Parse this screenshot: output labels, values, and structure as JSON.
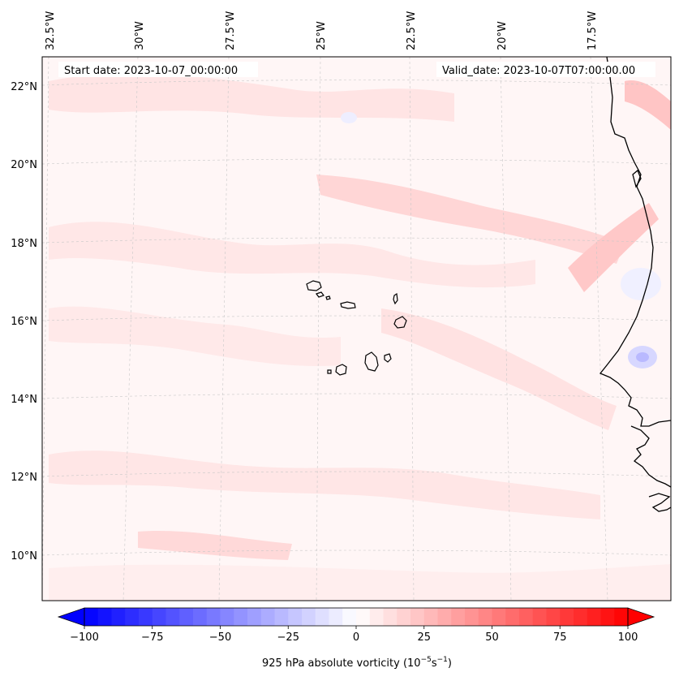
{
  "map": {
    "start_label": "Start date: 2023-10-07_00:00:00",
    "valid_label": "Valid_date: 2023-10-07T07:00:00.00",
    "lon_labels": [
      "32.5°W",
      "30°W",
      "27.5°W",
      "25°W",
      "22.5°W",
      "20°W",
      "17.5°W"
    ],
    "lat_labels": [
      "22°N",
      "20°N",
      "18°N",
      "16°N",
      "14°N",
      "12°N",
      "10°N"
    ],
    "field": "925 hPa absolute vorticity",
    "field_range": [
      -100,
      100
    ]
  },
  "colorbar": {
    "label_text": "925 hPa absolute vorticity (10",
    "label_exp1": "−5",
    "label_mid": "s",
    "label_exp2": "−1",
    "label_close": ")",
    "ticks": [
      "−100",
      "−75",
      "−50",
      "−25",
      "0",
      "25",
      "50",
      "75",
      "100"
    ],
    "low_color": "#0000ff",
    "mid_color": "#ffffff",
    "high_color": "#ff0000"
  }
}
